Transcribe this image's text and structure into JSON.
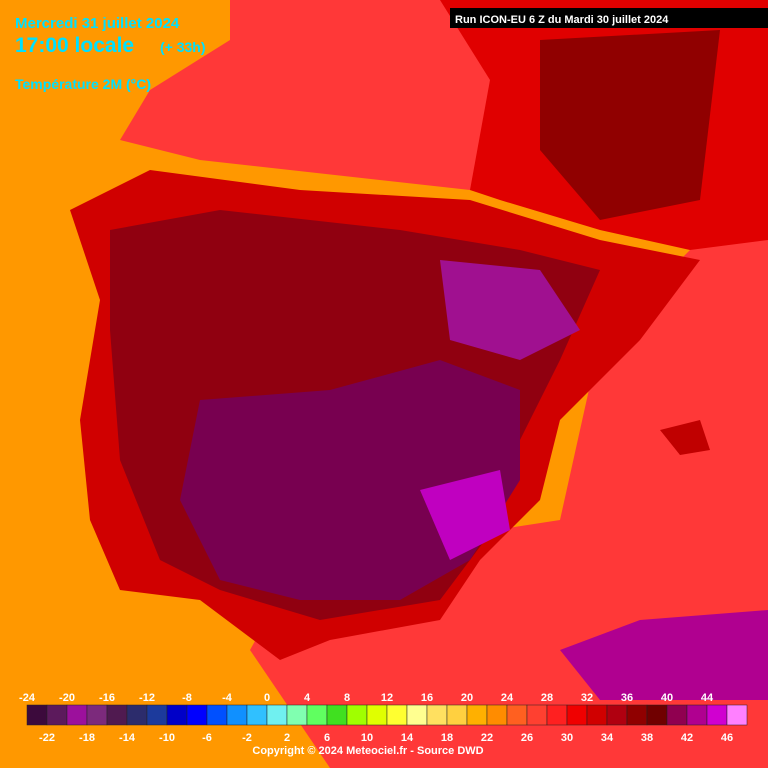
{
  "header": {
    "date": "Mercredi 31 juillet 2024",
    "time": "17:00 locale",
    "lead": "(+ 33h)",
    "variable": "Température 2M (°C)",
    "run": "Run ICON-EU 6 Z du Mardi 30 juillet 2024"
  },
  "legend": {
    "ticks": [
      -24,
      -22,
      -20,
      -18,
      -16,
      -14,
      -12,
      -10,
      -8,
      -6,
      -4,
      -2,
      0,
      2,
      4,
      6,
      8,
      10,
      12,
      14,
      16,
      18,
      20,
      22,
      24,
      26,
      28,
      30,
      32,
      34,
      36,
      38,
      40,
      42,
      44,
      46
    ],
    "colors": [
      "#3c0a3c",
      "#5c1a5c",
      "#9c109c",
      "#7c2a7c",
      "#501a50",
      "#2c2c6c",
      "#1c3a9c",
      "#0000c8",
      "#0000ff",
      "#0050ff",
      "#1090ff",
      "#30c0ff",
      "#70f0f0",
      "#80ffb0",
      "#60ff60",
      "#40e020",
      "#a0ff00",
      "#e0ff00",
      "#ffff30",
      "#ffff90",
      "#ffe060",
      "#ffd040",
      "#ffb000",
      "#ff8c00",
      "#ff6020",
      "#ff4030",
      "#ff2020",
      "#f00000",
      "#d00000",
      "#b00010",
      "#900000",
      "#700000",
      "#900050",
      "#b00090",
      "#d000d0",
      "#ff80ff"
    ]
  },
  "footer": {
    "copyright": "Copyright © 2024 Meteociel.fr - Source DWD"
  }
}
